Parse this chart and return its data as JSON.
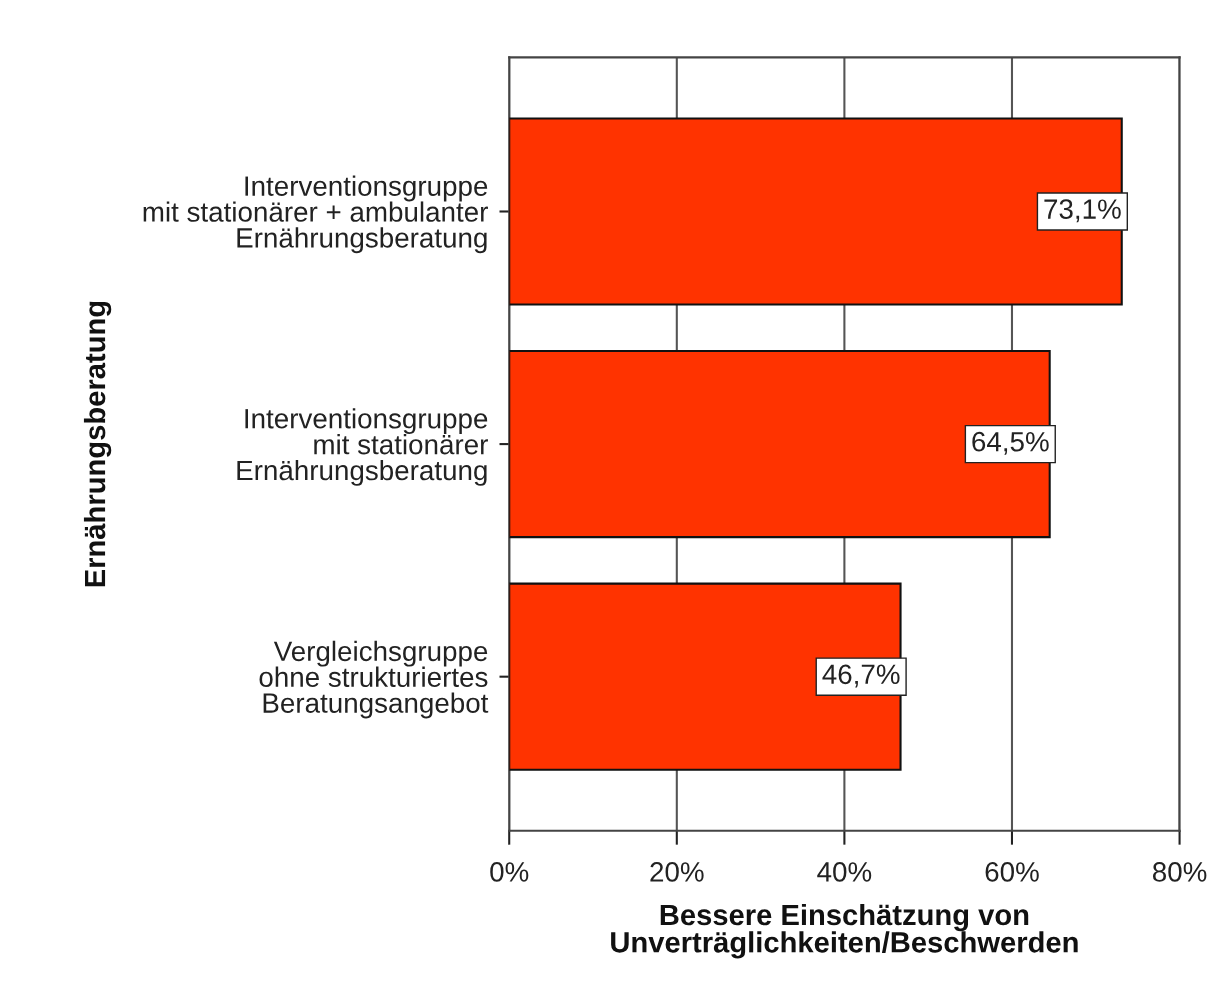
{
  "chart_data": {
    "type": "bar",
    "orientation": "horizontal",
    "categories": [
      "Interventionsgruppe\nmit stationärer + ambulanter\nErnährungsberatung",
      "Interventionsgruppe\nmit stationärer\nErnährungsberatung",
      "Vergleichsgruppe\nohne strukturiertes\nBeratungsangebot"
    ],
    "values": [
      73.1,
      64.5,
      46.7
    ],
    "value_labels": [
      "73,1%",
      "64,5%",
      "46,7%"
    ],
    "color": "#ff3300",
    "xlabel": "Bessere Einschätzung von\nUnverträglichkeiten/Beschwerden",
    "ylabel": "Ernährungsberatung",
    "xlim": [
      0,
      80
    ],
    "xticks": [
      {
        "value": 0,
        "label": "0%"
      },
      {
        "value": 20,
        "label": "20%"
      },
      {
        "value": 40,
        "label": "40%"
      },
      {
        "value": 60,
        "label": "60%"
      },
      {
        "value": 80,
        "label": "80%"
      }
    ],
    "grid": "x"
  }
}
